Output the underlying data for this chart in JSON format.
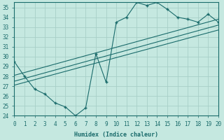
{
  "xlabel": "Humidex (Indice chaleur)",
  "xlim": [
    0,
    20
  ],
  "ylim": [
    24,
    35.5
  ],
  "xticks": [
    0,
    1,
    2,
    3,
    4,
    5,
    6,
    7,
    8,
    9,
    10,
    11,
    12,
    13,
    14,
    15,
    16,
    17,
    18,
    19,
    20
  ],
  "yticks": [
    24,
    25,
    26,
    27,
    28,
    29,
    30,
    31,
    32,
    33,
    34,
    35
  ],
  "bg_color": "#c5e8e0",
  "line_color": "#1a6b6b",
  "grid_color": "#a8cfc8",
  "main_line_x": [
    0,
    1,
    2,
    3,
    4,
    5,
    6,
    7,
    8,
    9,
    10,
    11,
    12,
    13,
    14,
    15,
    16,
    17,
    18,
    19,
    20
  ],
  "main_line_y": [
    29.5,
    28.0,
    26.7,
    26.2,
    25.3,
    24.9,
    24.0,
    24.8,
    30.3,
    27.4,
    33.5,
    34.0,
    35.5,
    35.2,
    35.5,
    34.8,
    34.0,
    33.8,
    33.5,
    34.3,
    33.5
  ],
  "trend1_x": [
    0,
    20
  ],
  "trend1_y": [
    28.1,
    33.8
  ],
  "trend2_x": [
    0,
    20
  ],
  "trend2_y": [
    27.5,
    33.2
  ],
  "trend3_x": [
    0,
    20
  ],
  "trend3_y": [
    27.1,
    32.7
  ]
}
